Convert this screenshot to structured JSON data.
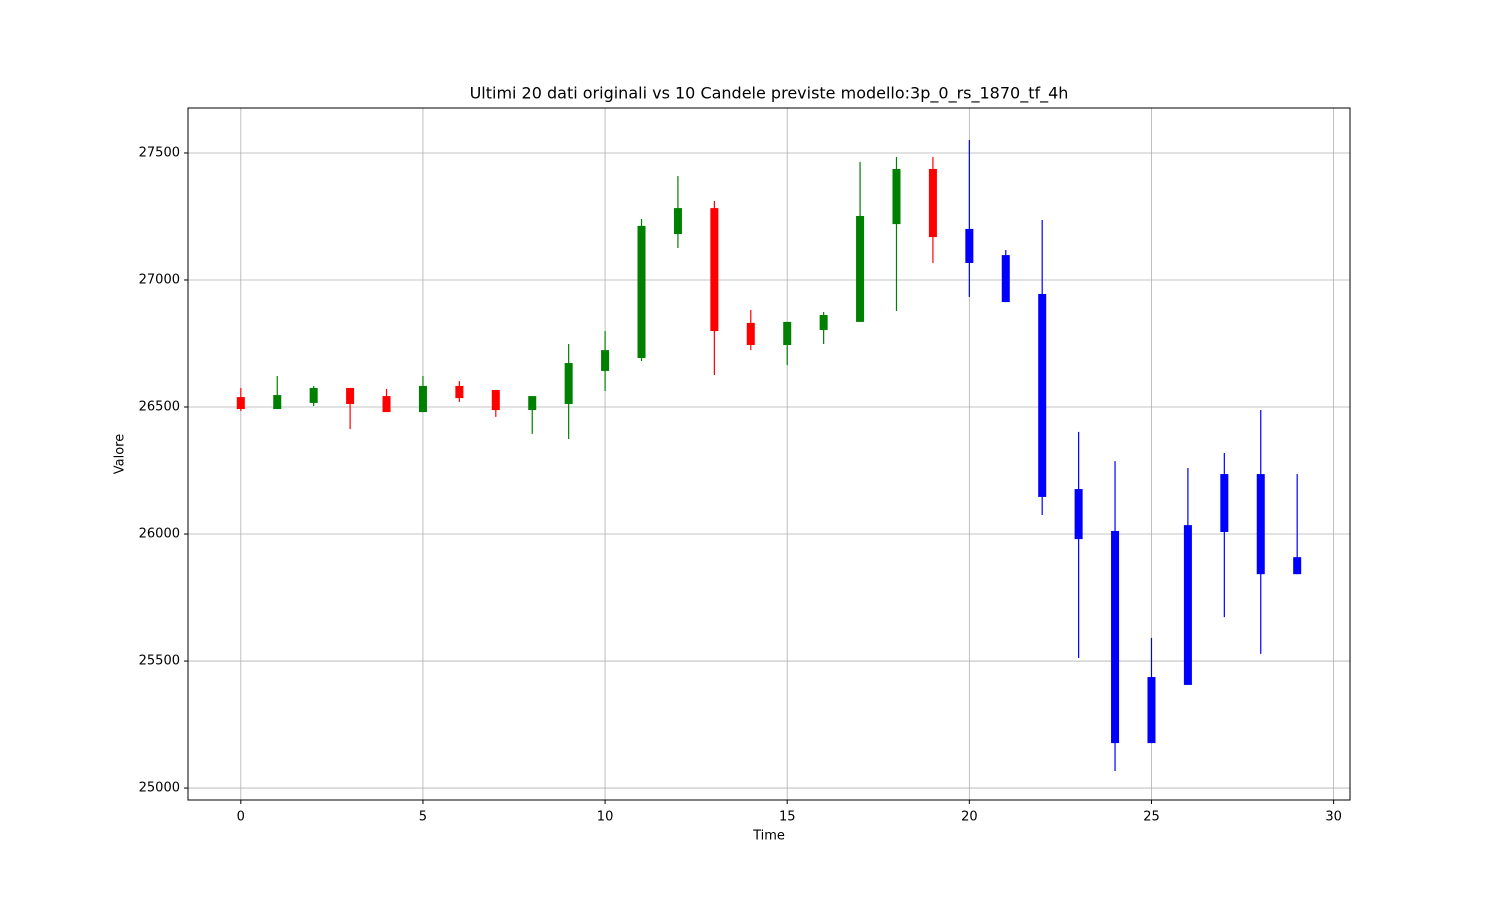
{
  "chart_data": {
    "type": "candlestick",
    "title": "Ultimi 20 dati originali vs 10 Candele previste modello:3p_0_rs_1870_tf_4h",
    "xlabel": "Time",
    "ylabel": "Valore",
    "xlim": [
      -1.45,
      30.45
    ],
    "xticks": [
      0,
      5,
      10,
      15,
      20,
      25,
      30
    ],
    "ylim": [
      24953,
      27677
    ],
    "yticks": [
      25000,
      25500,
      26000,
      26500,
      27000,
      27500
    ],
    "grid": true,
    "series": [
      {
        "up_color": "green",
        "down_color": "red",
        "x": [
          0,
          1,
          2,
          3,
          4,
          5,
          6,
          7,
          8,
          9,
          10,
          11,
          12,
          13,
          14,
          15,
          16,
          17,
          18,
          19
        ],
        "open": [
          26539,
          26492,
          26516,
          26575,
          26543,
          26480,
          26583,
          26567,
          26488,
          26512,
          26642,
          26693,
          27181,
          27283,
          26831,
          26744,
          26803,
          26835,
          27220,
          27437
        ],
        "high": [
          26575,
          26622,
          26583,
          26575,
          26571,
          26622,
          26602,
          26567,
          26543,
          26748,
          26799,
          27240,
          27409,
          27311,
          26882,
          26835,
          26874,
          27465,
          27484,
          27484
        ],
        "low": [
          26484,
          26492,
          26504,
          26413,
          26480,
          26480,
          26520,
          26461,
          26394,
          26374,
          26563,
          26681,
          27126,
          26626,
          26724,
          26665,
          26748,
          26835,
          26878,
          27067
        ],
        "close": [
          26492,
          26547,
          26575,
          26512,
          26480,
          26583,
          26535,
          26488,
          26543,
          26673,
          26724,
          27213,
          27283,
          26799,
          26744,
          26835,
          26862,
          27252,
          27437,
          27169
        ]
      },
      {
        "color": "blue",
        "x": [
          20,
          21,
          22,
          23,
          24,
          25,
          26,
          27,
          28,
          29
        ],
        "open": [
          27201,
          27098,
          26945,
          26177,
          26012,
          25437,
          26035,
          26236,
          26236,
          25909
        ],
        "high": [
          27551,
          27118,
          27236,
          26402,
          26287,
          25591,
          26260,
          26319,
          26488,
          26236
        ],
        "low": [
          26933,
          26913,
          26075,
          25512,
          25067,
          25177,
          25406,
          25673,
          25528,
          25842
        ],
        "close": [
          27067,
          26913,
          26146,
          25980,
          25177,
          25177,
          25406,
          26008,
          25842,
          25842
        ]
      }
    ]
  }
}
